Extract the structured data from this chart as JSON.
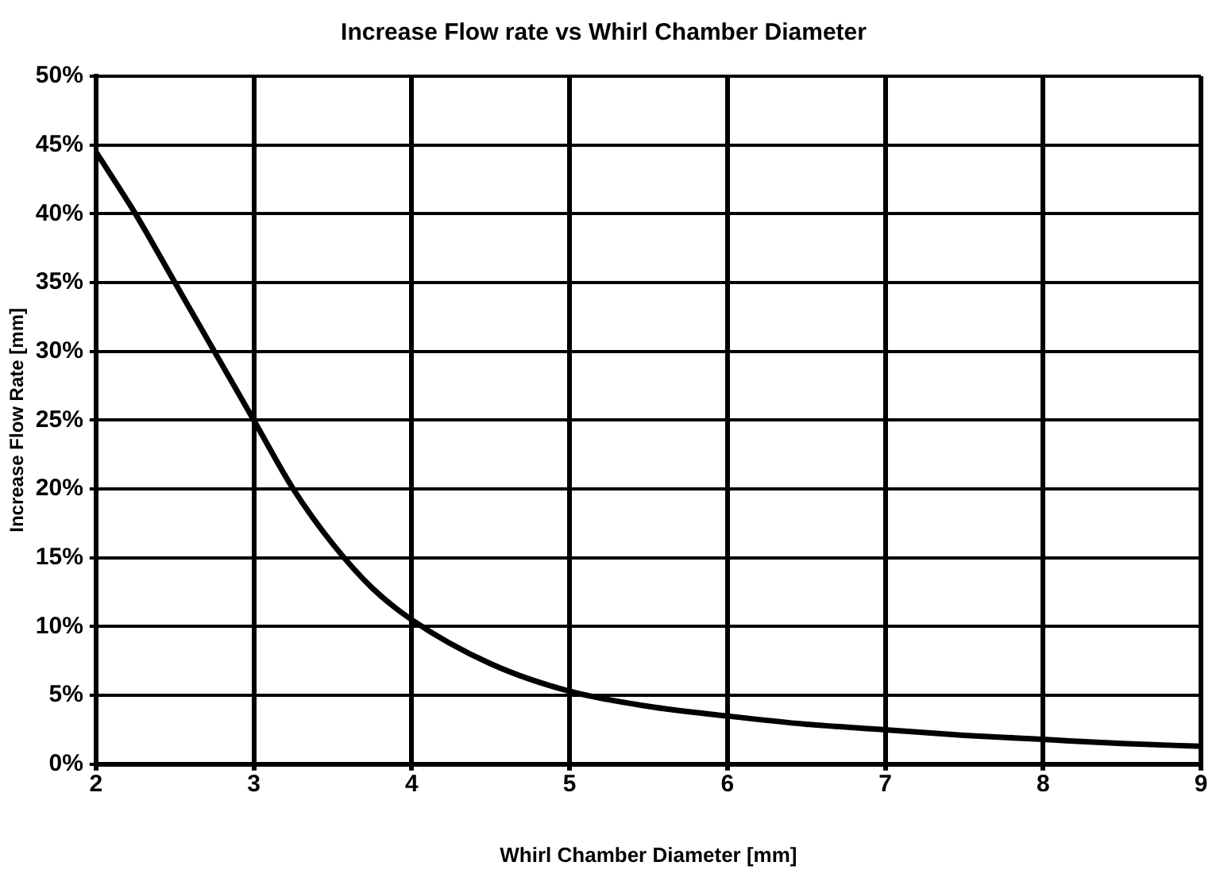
{
  "chart_data": {
    "type": "line",
    "title": "Increase Flow rate vs Whirl Chamber Diameter",
    "xlabel": "Whirl Chamber Diameter [mm]",
    "ylabel": "Increase Flow Rate [mm]",
    "x": [
      2,
      2.25,
      2.5,
      2.75,
      3,
      3.25,
      3.5,
      3.75,
      4,
      4.5,
      5,
      5.5,
      6,
      6.5,
      7,
      7.5,
      8,
      8.5,
      9
    ],
    "series": [
      {
        "color": "#000000",
        "values": [
          44.5,
          40,
          35,
          30,
          25,
          20,
          16,
          12.8,
          10.5,
          7.3,
          5.3,
          4.2,
          3.5,
          2.9,
          2.5,
          2.1,
          1.8,
          1.5,
          1.3
        ]
      }
    ],
    "xlim": [
      2,
      9
    ],
    "xticks": [
      2,
      3,
      4,
      5,
      6,
      7,
      8,
      9
    ],
    "ylim": [
      0,
      50
    ],
    "yticks": [
      {
        "value": 0,
        "label": "0%"
      },
      {
        "value": 5,
        "label": "5%"
      },
      {
        "value": 10,
        "label": "10%"
      },
      {
        "value": 15,
        "label": "15%"
      },
      {
        "value": 20,
        "label": "20%"
      },
      {
        "value": 25,
        "label": "25%"
      },
      {
        "value": 30,
        "label": "30%"
      },
      {
        "value": 35,
        "label": "35%"
      },
      {
        "value": 40,
        "label": "40%"
      },
      {
        "value": 45,
        "label": "45%"
      },
      {
        "value": 50,
        "label": "50%"
      }
    ],
    "grid": true,
    "marker": "none",
    "line_style": "solid"
  }
}
